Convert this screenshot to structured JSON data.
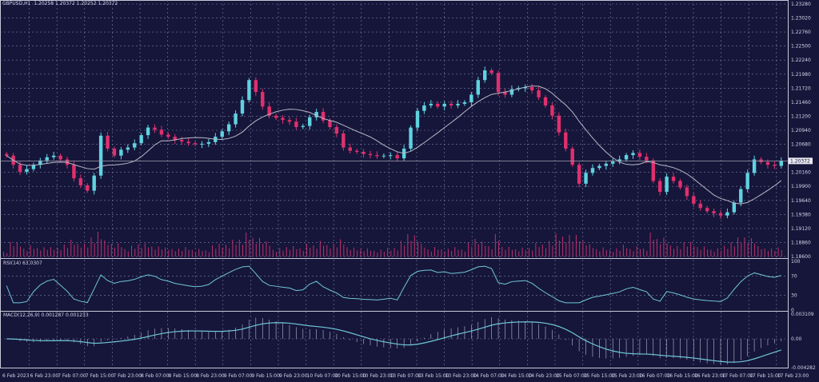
{
  "header": {
    "symbol": "GBPUSD,H1",
    "ohlc": "1.20258 1.20372 1.20252 1.20372"
  },
  "colors": {
    "background": "#16163a",
    "bull": "#5fd3e0",
    "bear": "#e0306e",
    "ma": "#b8b8c8",
    "grid": "#7a7fa8",
    "volume": "#c0306e",
    "indicator": "#6fc7d8"
  },
  "chart_data": [
    {
      "type": "candlestick",
      "title": "GBPUSD,H1",
      "ylim": [
        1.186,
        1.2328
      ],
      "y_ticks": [
        "1.23280",
        "1.23020",
        "1.22760",
        "1.22500",
        "1.22240",
        "1.21980",
        "1.21720",
        "1.21460",
        "1.21200",
        "1.20940",
        "1.20680",
        "1.20160",
        "1.19900",
        "1.19640",
        "1.19380",
        "1.19120",
        "1.18860",
        "1.18600"
      ],
      "current_price": "1.20372",
      "x_ticks": [
        "6 Feb 2023",
        "6 Feb 23:00",
        "7 Feb 07:00",
        "7 Feb 15:00",
        "7 Feb 23:00",
        "8 Feb 07:00",
        "8 Feb 15:00",
        "8 Feb 23:00",
        "9 Feb 07:00",
        "9 Feb 15:00",
        "9 Feb 23:00",
        "10 Feb 07:00",
        "10 Feb 15:00",
        "10 Feb 23:00",
        "13 Feb 07:00",
        "13 Feb 15:00",
        "13 Feb 23:00",
        "14 Feb 07:00",
        "14 Feb 15:00",
        "14 Feb 23:00",
        "15 Feb 07:00",
        "15 Feb 15:00",
        "15 Feb 23:00",
        "16 Feb 07:00",
        "16 Feb 15:00",
        "16 Feb 23:00",
        "17 Feb 07:00",
        "17 Feb 15:00",
        "17 Feb 23:00"
      ],
      "closes": [
        1.2047,
        1.203,
        1.2017,
        1.2022,
        1.203,
        1.2038,
        1.2044,
        1.2047,
        1.204,
        1.203,
        1.2005,
        1.1992,
        1.1982,
        1.201,
        1.2084,
        1.206,
        1.2047,
        1.2058,
        1.2062,
        1.207,
        1.2085,
        1.2099,
        1.2095,
        1.2086,
        1.2082,
        1.2076,
        1.2073,
        1.207,
        1.2068,
        1.2069,
        1.2072,
        1.2082,
        1.2092,
        1.2105,
        1.2125,
        1.215,
        1.2187,
        1.2165,
        1.2138,
        1.2121,
        1.2117,
        1.2113,
        1.211,
        1.21,
        1.2102,
        1.2118,
        1.2128,
        1.2112,
        1.21,
        1.2088,
        1.2062,
        1.2056,
        1.2054,
        1.205,
        1.2048,
        1.2046,
        1.2047,
        1.2048,
        1.2042,
        1.206,
        1.2099,
        1.213,
        1.214,
        1.2143,
        1.2138,
        1.2143,
        1.214,
        1.2143,
        1.2146,
        1.216,
        1.2187,
        1.2205,
        1.22,
        1.2165,
        1.216,
        1.217,
        1.2172,
        1.2174,
        1.2168,
        1.2155,
        1.214,
        1.2121,
        1.209,
        1.206,
        1.203,
        1.1995,
        1.2015,
        1.2024,
        1.2028,
        1.2032,
        1.2036,
        1.204,
        1.2048,
        1.2052,
        1.2045,
        1.2038,
        1.2,
        1.198,
        1.2008,
        1.2,
        1.1988,
        1.1972,
        1.1958,
        1.195,
        1.1944,
        1.194,
        1.1936,
        1.1942,
        1.196,
        1.1985,
        1.2015,
        1.204,
        1.2035,
        1.203,
        1.2028,
        1.2037
      ]
    },
    {
      "type": "line",
      "title": "RSI(14) 63.0307",
      "ylim": [
        0,
        100
      ],
      "y_ticks": [
        "100",
        "70",
        "30",
        "0"
      ]
    },
    {
      "type": "bar+line",
      "title": "MACD(12,26,9) 0.001287 0.001233",
      "y_ticks": [
        "0.003109",
        "0.00",
        "-0.004282"
      ]
    }
  ]
}
